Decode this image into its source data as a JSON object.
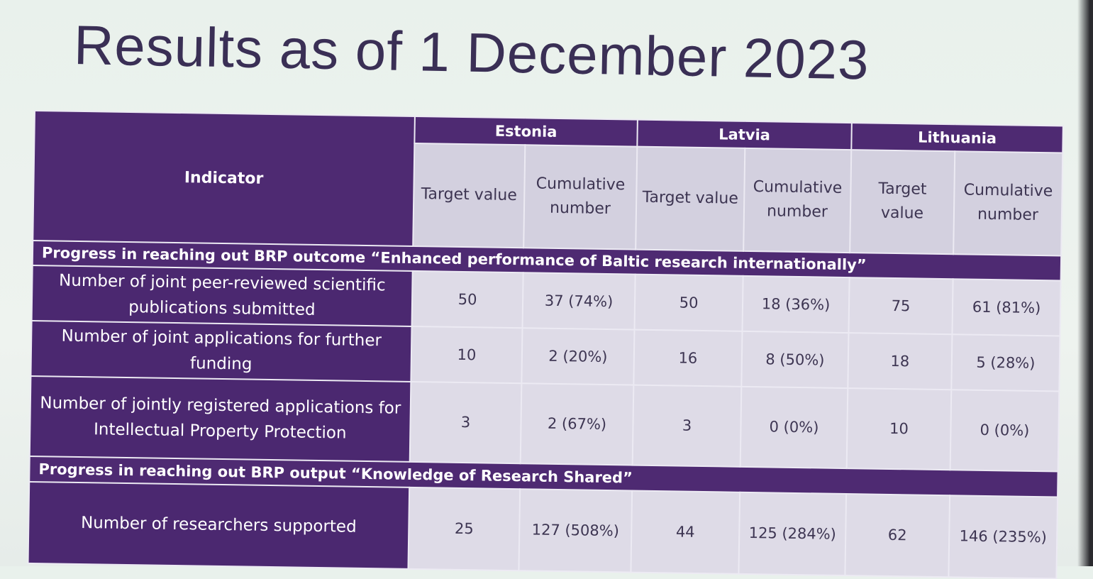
{
  "title": "Results as of 1 December 2023",
  "table": {
    "indicator_header": "Indicator",
    "countries": [
      "Estonia",
      "Latvia",
      "Lithuania"
    ],
    "sub_headers": {
      "target": "Target value",
      "cumulative": "Cumulative number"
    },
    "sections": [
      {
        "heading": "Progress in reaching out BRP outcome “Enhanced performance of Baltic research internationally”",
        "rows": [
          {
            "indicator": "Number of joint peer-reviewed scientific publications submitted",
            "values": [
              "50",
              "37 (74%)",
              "50",
              "18 (36%)",
              "75",
              "61 (81%)"
            ]
          },
          {
            "indicator": "Number of joint applications for further funding",
            "values": [
              "10",
              "2 (20%)",
              "16",
              "8 (50%)",
              "18",
              "5 (28%)"
            ]
          },
          {
            "indicator": "Number of jointly registered applications for Intellectual Property Protection",
            "values": [
              "3",
              "2 (67%)",
              "3",
              "0 (0%)",
              "10",
              "0 (0%)"
            ]
          }
        ]
      },
      {
        "heading": "Progress in reaching out BRP output “Knowledge of Research Shared”",
        "rows": [
          {
            "indicator": "Number of researchers supported",
            "values": [
              "25",
              "127 (508%)",
              "44",
              "125 (284%)",
              "62",
              "146 (235%)"
            ]
          }
        ]
      }
    ]
  },
  "colors": {
    "header_purple": "#4e2a72",
    "cell_grey": "#dedbe7",
    "title": "#3a2f55"
  }
}
